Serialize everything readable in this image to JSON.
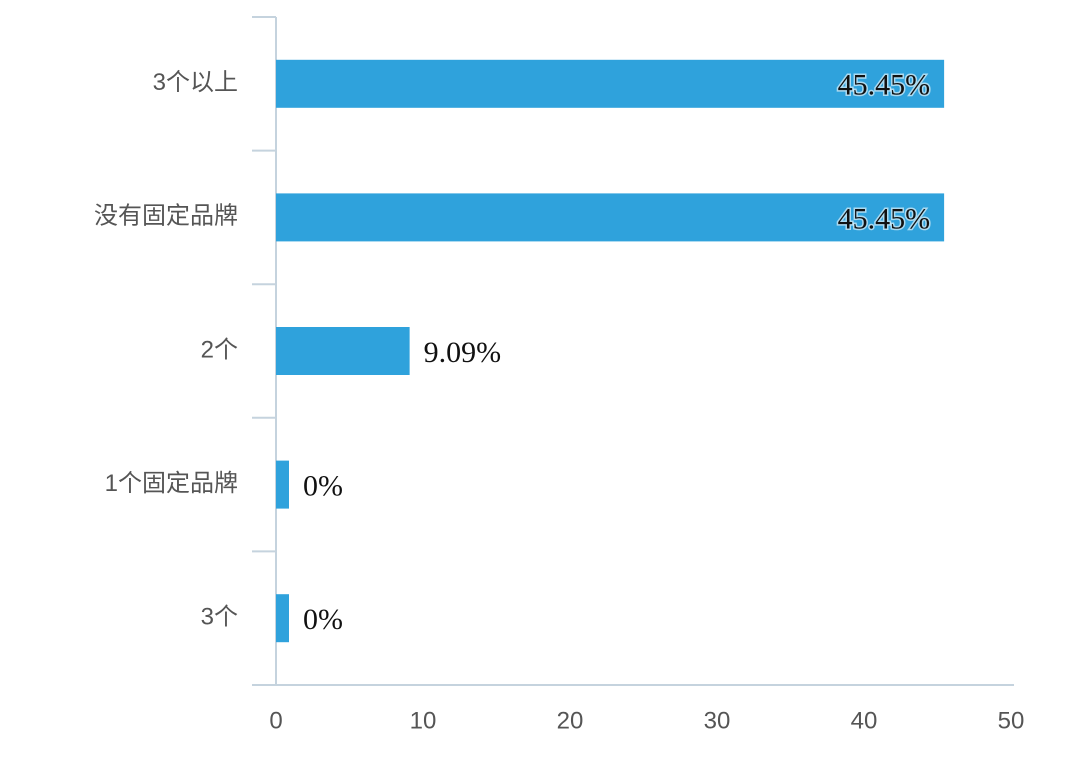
{
  "chart_data": {
    "type": "hbar",
    "categories": [
      "3个以上",
      "没有固定品牌",
      "2个",
      "1个固定品牌",
      "3个"
    ],
    "values": [
      45.45,
      45.45,
      9.09,
      0,
      0
    ],
    "value_labels": [
      "45.45%",
      "45.45%",
      "9.09%",
      "0%",
      "0%"
    ],
    "color": "#2fa2dc",
    "xlim": [
      0,
      50
    ],
    "xticks": [
      0,
      10,
      20,
      30,
      40,
      50
    ]
  }
}
